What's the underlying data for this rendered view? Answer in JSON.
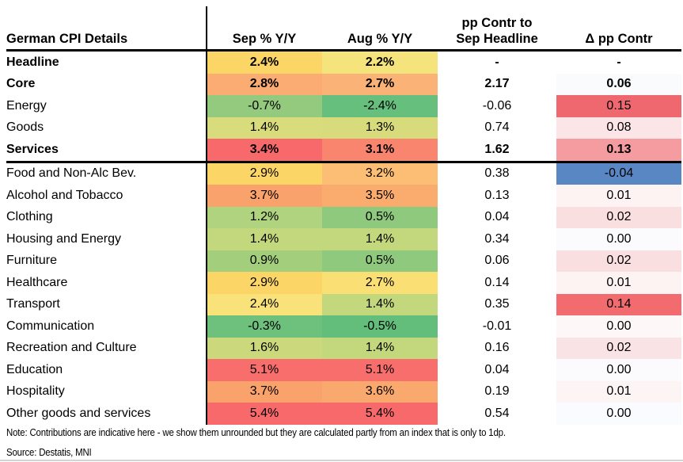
{
  "table": {
    "title": "German CPI Details",
    "columns": {
      "sep": "Sep % Y/Y",
      "aug": "Aug % Y/Y",
      "contr_line1": "pp Contr to",
      "contr_line2": "Sep Headline",
      "delta": "Δ pp Contr"
    },
    "rows": [
      {
        "label": "Headline",
        "bold": true,
        "section": "summary",
        "sep": "2.4%",
        "sep_bg": "#FBD565",
        "aug": "2.2%",
        "aug_bg": "#F5E37B",
        "contr": "-",
        "delta": "-",
        "delta_bg": ""
      },
      {
        "label": "Core",
        "bold": true,
        "section": "summary",
        "sep": "2.8%",
        "sep_bg": "#FBAC72",
        "aug": "2.7%",
        "aug_bg": "#FBB276",
        "contr": "2.17",
        "delta": "0.06",
        "delta_bg": "#FAFBFD"
      },
      {
        "label": "Energy",
        "bold": false,
        "section": "summary",
        "sep": "-0.7%",
        "sep_bg": "#93CA7D",
        "aug": "-2.4%",
        "aug_bg": "#66BF7C",
        "contr": "-0.06",
        "delta": "0.15",
        "delta_bg": "#F0686F"
      },
      {
        "label": "Goods",
        "bold": false,
        "section": "summary",
        "sep": "1.4%",
        "sep_bg": "#D9DC7C",
        "aug": "1.3%",
        "aug_bg": "#D7DB7C",
        "contr": "0.74",
        "delta": "0.08",
        "delta_bg": "#FBE5E7"
      },
      {
        "label": "Services",
        "bold": true,
        "section": "summary",
        "sep": "3.4%",
        "sep_bg": "#F8696B",
        "aug": "3.1%",
        "aug_bg": "#F9856F",
        "contr": "1.62",
        "delta": "0.13",
        "delta_bg": "#F49CA0"
      },
      {
        "label": "Food and Non-Alc Bev.",
        "bold": false,
        "section": "components",
        "sep": "2.9%",
        "sep_bg": "#FBD666",
        "aug": "3.2%",
        "aug_bg": "#FBBE74",
        "contr": "0.38",
        "delta": "-0.04",
        "delta_bg": "#5987C3"
      },
      {
        "label": "Alcohol and Tobacco",
        "bold": false,
        "section": "components",
        "sep": "3.7%",
        "sep_bg": "#FAA26C",
        "aug": "3.5%",
        "aug_bg": "#FAAC6F",
        "contr": "0.13",
        "delta": "0.01",
        "delta_bg": "#FDF3F2"
      },
      {
        "label": "Clothing",
        "bold": false,
        "section": "components",
        "sep": "1.2%",
        "sep_bg": "#AFD37E",
        "aug": "0.5%",
        "aug_bg": "#8FC97E",
        "contr": "0.04",
        "delta": "0.02",
        "delta_bg": "#FADFE0"
      },
      {
        "label": "Housing and Energy",
        "bold": false,
        "section": "components",
        "sep": "1.4%",
        "sep_bg": "#C3D77C",
        "aug": "1.4%",
        "aug_bg": "#C3D77C",
        "contr": "0.34",
        "delta": "0.00",
        "delta_bg": "#FBFBFE"
      },
      {
        "label": "Furniture",
        "bold": false,
        "section": "components",
        "sep": "0.9%",
        "sep_bg": "#A3CF7D",
        "aug": "0.5%",
        "aug_bg": "#8FC97E",
        "contr": "0.06",
        "delta": "0.02",
        "delta_bg": "#FADFE0"
      },
      {
        "label": "Healthcare",
        "bold": false,
        "section": "components",
        "sep": "2.9%",
        "sep_bg": "#FBD666",
        "aug": "2.7%",
        "aug_bg": "#FADF74",
        "contr": "0.14",
        "delta": "0.01",
        "delta_bg": "#FDF3F2"
      },
      {
        "label": "Transport",
        "bold": false,
        "section": "components",
        "sep": "2.4%",
        "sep_bg": "#F8E279",
        "aug": "1.4%",
        "aug_bg": "#C3D77C",
        "contr": "0.35",
        "delta": "0.14",
        "delta_bg": "#F26B6E"
      },
      {
        "label": "Communication",
        "bold": false,
        "section": "components",
        "sep": "-0.3%",
        "sep_bg": "#6DC17D",
        "aug": "-0.5%",
        "aug_bg": "#63BE7B",
        "contr": "-0.01",
        "delta": "0.00",
        "delta_bg": "#FDF7F7"
      },
      {
        "label": "Recreation and Culture",
        "bold": false,
        "section": "components",
        "sep": "1.6%",
        "sep_bg": "#CBD97C",
        "aug": "1.4%",
        "aug_bg": "#C3D77C",
        "contr": "0.16",
        "delta": "0.02",
        "delta_bg": "#FAE3E4"
      },
      {
        "label": "Education",
        "bold": false,
        "section": "components",
        "sep": "5.1%",
        "sep_bg": "#F86E6D",
        "aug": "5.1%",
        "aug_bg": "#F86E6D",
        "contr": "0.04",
        "delta": "0.00",
        "delta_bg": "#FBFBFE"
      },
      {
        "label": "Hospitality",
        "bold": false,
        "section": "components",
        "sep": "3.7%",
        "sep_bg": "#FAA26C",
        "aug": "3.6%",
        "aug_bg": "#FAA96E",
        "contr": "0.19",
        "delta": "0.01",
        "delta_bg": "#FDF4F4"
      },
      {
        "label": "Other goods and services",
        "bold": false,
        "section": "components",
        "sep": "5.4%",
        "sep_bg": "#F8696B",
        "aug": "5.4%",
        "aug_bg": "#F8696B",
        "contr": "0.54",
        "delta": "0.00",
        "delta_bg": "#FAFBFE"
      }
    ]
  },
  "note": "Note: Contributions are indicative here - we show them unrounded but they are calculated partly from an index that is only to 1dp.",
  "source": "Source: Destatis, MNI",
  "colors": {
    "heat_green": "#63BE7B",
    "heat_yellow": "#FFEB84",
    "heat_red": "#F8696B",
    "delta_negative_blue": "#5987C3",
    "divider_black": "#000000"
  },
  "chart_data": {
    "type": "table",
    "title": "German CPI Details",
    "columns": [
      "Sep % Y/Y",
      "Aug % Y/Y",
      "pp Contr to Sep Headline",
      "Δ pp Contr"
    ],
    "rows": [
      {
        "label": "Headline",
        "sep_pct_yy": 2.4,
        "aug_pct_yy": 2.2,
        "pp_contr_sep_headline": null,
        "delta_pp_contr": null
      },
      {
        "label": "Core",
        "sep_pct_yy": 2.8,
        "aug_pct_yy": 2.7,
        "pp_contr_sep_headline": 2.17,
        "delta_pp_contr": 0.06
      },
      {
        "label": "Energy",
        "sep_pct_yy": -0.7,
        "aug_pct_yy": -2.4,
        "pp_contr_sep_headline": -0.06,
        "delta_pp_contr": 0.15
      },
      {
        "label": "Goods",
        "sep_pct_yy": 1.4,
        "aug_pct_yy": 1.3,
        "pp_contr_sep_headline": 0.74,
        "delta_pp_contr": 0.08
      },
      {
        "label": "Services",
        "sep_pct_yy": 3.4,
        "aug_pct_yy": 3.1,
        "pp_contr_sep_headline": 1.62,
        "delta_pp_contr": 0.13
      },
      {
        "label": "Food and Non-Alc Bev.",
        "sep_pct_yy": 2.9,
        "aug_pct_yy": 3.2,
        "pp_contr_sep_headline": 0.38,
        "delta_pp_contr": -0.04
      },
      {
        "label": "Alcohol and Tobacco",
        "sep_pct_yy": 3.7,
        "aug_pct_yy": 3.5,
        "pp_contr_sep_headline": 0.13,
        "delta_pp_contr": 0.01
      },
      {
        "label": "Clothing",
        "sep_pct_yy": 1.2,
        "aug_pct_yy": 0.5,
        "pp_contr_sep_headline": 0.04,
        "delta_pp_contr": 0.02
      },
      {
        "label": "Housing and Energy",
        "sep_pct_yy": 1.4,
        "aug_pct_yy": 1.4,
        "pp_contr_sep_headline": 0.34,
        "delta_pp_contr": 0.0
      },
      {
        "label": "Furniture",
        "sep_pct_yy": 0.9,
        "aug_pct_yy": 0.5,
        "pp_contr_sep_headline": 0.06,
        "delta_pp_contr": 0.02
      },
      {
        "label": "Healthcare",
        "sep_pct_yy": 2.9,
        "aug_pct_yy": 2.7,
        "pp_contr_sep_headline": 0.14,
        "delta_pp_contr": 0.01
      },
      {
        "label": "Transport",
        "sep_pct_yy": 2.4,
        "aug_pct_yy": 1.4,
        "pp_contr_sep_headline": 0.35,
        "delta_pp_contr": 0.14
      },
      {
        "label": "Communication",
        "sep_pct_yy": -0.3,
        "aug_pct_yy": -0.5,
        "pp_contr_sep_headline": -0.01,
        "delta_pp_contr": 0.0
      },
      {
        "label": "Recreation and Culture",
        "sep_pct_yy": 1.6,
        "aug_pct_yy": 1.4,
        "pp_contr_sep_headline": 0.16,
        "delta_pp_contr": 0.02
      },
      {
        "label": "Education",
        "sep_pct_yy": 5.1,
        "aug_pct_yy": 5.1,
        "pp_contr_sep_headline": 0.04,
        "delta_pp_contr": 0.0
      },
      {
        "label": "Hospitality",
        "sep_pct_yy": 3.7,
        "aug_pct_yy": 3.6,
        "pp_contr_sep_headline": 0.19,
        "delta_pp_contr": 0.01
      },
      {
        "label": "Other goods and services",
        "sep_pct_yy": 5.4,
        "aug_pct_yy": 5.4,
        "pp_contr_sep_headline": 0.54,
        "delta_pp_contr": 0.0
      }
    ],
    "layout": {
      "heatmap": "red-yellow-green color scale on % Y/Y columns (high=red, low=green); red-white-blue scale on Δ pp Contr column",
      "sections": [
        "summary rows: Headline, Core, Energy, Goods, Services (bold: Headline, Core, Services)",
        "component rows: 12 CPI categories"
      ]
    }
  }
}
